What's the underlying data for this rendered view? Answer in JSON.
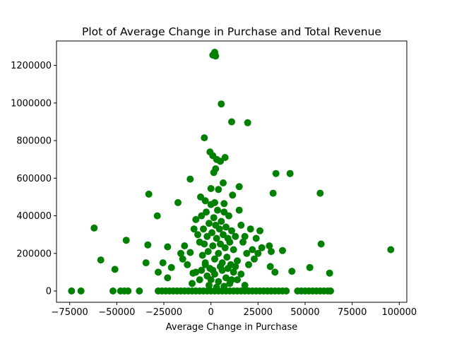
{
  "chart_data": {
    "type": "scatter",
    "title": "Plot of Average Change in Purchase and Total Revenue",
    "xlabel": "Average Change in Purchase",
    "ylabel": "",
    "xlim": [
      -82000,
      104000
    ],
    "ylim": [
      -60000,
      1330000
    ],
    "grid": false,
    "legend": "none",
    "colors": {
      "marker": "#008000",
      "axes": "#000000",
      "background": "#ffffff"
    },
    "xticks": [
      {
        "value": -75000,
        "label": "−75000"
      },
      {
        "value": -50000,
        "label": "−50000"
      },
      {
        "value": -25000,
        "label": "−25000"
      },
      {
        "value": 0,
        "label": "0"
      },
      {
        "value": 25000,
        "label": "25000"
      },
      {
        "value": 50000,
        "label": "50000"
      },
      {
        "value": 75000,
        "label": "75000"
      },
      {
        "value": 100000,
        "label": "100000"
      }
    ],
    "yticks": [
      {
        "value": 0,
        "label": "0"
      },
      {
        "value": 200000,
        "label": "200000"
      },
      {
        "value": 400000,
        "label": "400000"
      },
      {
        "value": 600000,
        "label": "600000"
      },
      {
        "value": 800000,
        "label": "800000"
      },
      {
        "value": 1000000,
        "label": "1000000"
      },
      {
        "value": 1200000,
        "label": "1200000"
      }
    ],
    "points": [
      [
        1000,
        1255000
      ],
      [
        2000,
        1270000
      ],
      [
        2500,
        1250000
      ],
      [
        5500,
        995000
      ],
      [
        11000,
        900000
      ],
      [
        19500,
        895000
      ],
      [
        -3500,
        815000
      ],
      [
        -500,
        740000
      ],
      [
        1000,
        720000
      ],
      [
        7500,
        710000
      ],
      [
        3000,
        700000
      ],
      [
        5000,
        690000
      ],
      [
        1500,
        630000
      ],
      [
        2500,
        650000
      ],
      [
        6500,
        575000
      ],
      [
        -11000,
        595000
      ],
      [
        34500,
        625000
      ],
      [
        42000,
        625000
      ],
      [
        0,
        545000
      ],
      [
        4000,
        540000
      ],
      [
        11500,
        510000
      ],
      [
        15000,
        555000
      ],
      [
        33000,
        520000
      ],
      [
        58000,
        520000
      ],
      [
        -33000,
        515000
      ],
      [
        -5500,
        500000
      ],
      [
        -17500,
        470000
      ],
      [
        -3000,
        480000
      ],
      [
        2000,
        470000
      ],
      [
        7000,
        465000
      ],
      [
        -62000,
        335000
      ],
      [
        -28500,
        400000
      ],
      [
        -45000,
        270000
      ],
      [
        -58500,
        165000
      ],
      [
        -51000,
        115000
      ],
      [
        -34500,
        150000
      ],
      [
        -33500,
        245000
      ],
      [
        -23000,
        235000
      ],
      [
        -28000,
        100000
      ],
      [
        -25500,
        150000
      ],
      [
        -21000,
        125000
      ],
      [
        -23000,
        70000
      ],
      [
        -16000,
        200000
      ],
      [
        -14000,
        240000
      ],
      [
        -15000,
        170000
      ],
      [
        -12500,
        140000
      ],
      [
        -11000,
        205000
      ],
      [
        -9500,
        95000
      ],
      [
        -9000,
        330000
      ],
      [
        -8000,
        380000
      ],
      [
        -7000,
        300000
      ],
      [
        -6000,
        260000
      ],
      [
        -5000,
        400000
      ],
      [
        -4500,
        190000
      ],
      [
        -4000,
        330000
      ],
      [
        -3500,
        250000
      ],
      [
        -3000,
        150000
      ],
      [
        -2500,
        420000
      ],
      [
        -2000,
        290000
      ],
      [
        -1500,
        210000
      ],
      [
        -1000,
        360000
      ],
      [
        -500,
        120000
      ],
      [
        0,
        460000
      ],
      [
        500,
        310000
      ],
      [
        1000,
        240000
      ],
      [
        1500,
        390000
      ],
      [
        2000,
        170000
      ],
      [
        2500,
        350000
      ],
      [
        3000,
        280000
      ],
      [
        3500,
        430000
      ],
      [
        4000,
        200000
      ],
      [
        4500,
        330000
      ],
      [
        5000,
        250000
      ],
      [
        5500,
        370000
      ],
      [
        6000,
        150000
      ],
      [
        6500,
        300000
      ],
      [
        7000,
        420000
      ],
      [
        7500,
        230000
      ],
      [
        8000,
        340000
      ],
      [
        8500,
        180000
      ],
      [
        9000,
        280000
      ],
      [
        9500,
        400000
      ],
      [
        10000,
        260000
      ],
      [
        10500,
        140000
      ],
      [
        11000,
        320000
      ],
      [
        12000,
        220000
      ],
      [
        13000,
        290000
      ],
      [
        14000,
        160000
      ],
      [
        15000,
        430000
      ],
      [
        16000,
        350000
      ],
      [
        17000,
        260000
      ],
      [
        18000,
        290000
      ],
      [
        19000,
        200000
      ],
      [
        20000,
        140000
      ],
      [
        21000,
        330000
      ],
      [
        22000,
        220000
      ],
      [
        23000,
        170000
      ],
      [
        24000,
        280000
      ],
      [
        25000,
        200000
      ],
      [
        26000,
        320000
      ],
      [
        27000,
        230000
      ],
      [
        31000,
        240000
      ],
      [
        31500,
        130000
      ],
      [
        32000,
        210000
      ],
      [
        34000,
        100000
      ],
      [
        38000,
        215000
      ],
      [
        43000,
        105000
      ],
      [
        52500,
        125000
      ],
      [
        58500,
        250000
      ],
      [
        63000,
        95000
      ],
      [
        95500,
        220000
      ],
      [
        -2000,
        80000
      ],
      [
        0,
        60000
      ],
      [
        2000,
        90000
      ],
      [
        4000,
        50000
      ],
      [
        6000,
        110000
      ],
      [
        8000,
        70000
      ],
      [
        10000,
        40000
      ],
      [
        12000,
        100000
      ],
      [
        -6000,
        60000
      ],
      [
        -8000,
        100000
      ],
      [
        14000,
        60000
      ],
      [
        16000,
        90000
      ],
      [
        18000,
        30000
      ],
      [
        -10000,
        40000
      ],
      [
        3000,
        20000
      ],
      [
        -1000,
        30000
      ],
      [
        7000,
        25000
      ],
      [
        1000,
        110000
      ],
      [
        5000,
        130000
      ],
      [
        -3000,
        140000
      ],
      [
        9000,
        120000
      ],
      [
        -5000,
        110000
      ],
      [
        13000,
        130000
      ],
      [
        11000,
        60000
      ],
      [
        -74000,
        0
      ],
      [
        -69000,
        0
      ],
      [
        -52000,
        0
      ],
      [
        -48000,
        0
      ],
      [
        -46000,
        0
      ],
      [
        -44000,
        0
      ],
      [
        -38000,
        0
      ],
      [
        -28000,
        0
      ],
      [
        -26000,
        0
      ],
      [
        -24000,
        0
      ],
      [
        -22000,
        0
      ],
      [
        -20000,
        0
      ],
      [
        -18000,
        0
      ],
      [
        -16000,
        0
      ],
      [
        -14000,
        0
      ],
      [
        -12000,
        0
      ],
      [
        -10000,
        0
      ],
      [
        -8000,
        0
      ],
      [
        -6000,
        0
      ],
      [
        -4000,
        0
      ],
      [
        -2000,
        0
      ],
      [
        0,
        0
      ],
      [
        2000,
        0
      ],
      [
        4000,
        0
      ],
      [
        6000,
        0
      ],
      [
        8000,
        0
      ],
      [
        10000,
        0
      ],
      [
        12000,
        0
      ],
      [
        14000,
        0
      ],
      [
        16000,
        0
      ],
      [
        18000,
        0
      ],
      [
        20000,
        0
      ],
      [
        22000,
        0
      ],
      [
        24000,
        0
      ],
      [
        26000,
        0
      ],
      [
        28000,
        0
      ],
      [
        30000,
        0
      ],
      [
        32000,
        0
      ],
      [
        34000,
        0
      ],
      [
        36000,
        0
      ],
      [
        38000,
        0
      ],
      [
        40000,
        0
      ],
      [
        46000,
        0
      ],
      [
        48000,
        0
      ],
      [
        50000,
        0
      ],
      [
        52000,
        0
      ],
      [
        54000,
        0
      ],
      [
        56000,
        0
      ],
      [
        58000,
        0
      ],
      [
        60000,
        0
      ],
      [
        62000,
        0
      ],
      [
        63500,
        0
      ]
    ]
  }
}
